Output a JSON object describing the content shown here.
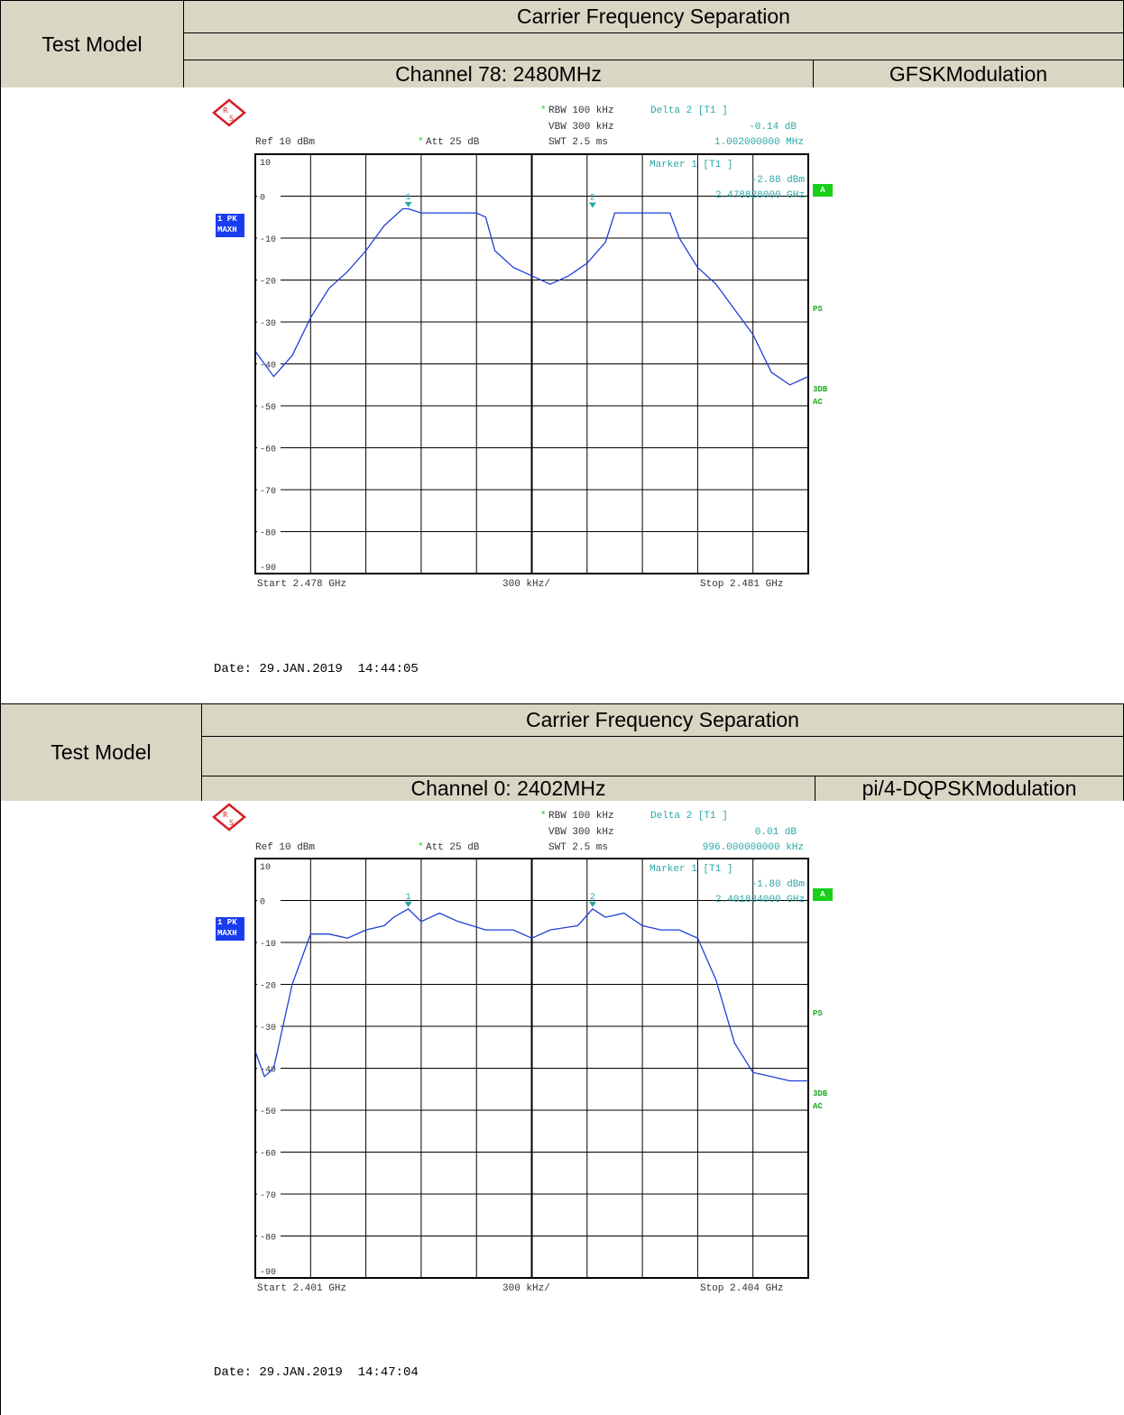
{
  "sections": [
    {
      "title": "Carrier Frequency Separation",
      "test_model_label": "Test Model",
      "channel": "Channel 78: 2480MHz",
      "modulation": "GFSKModulation",
      "date": "Date: 29.JAN.2019  14:44:05",
      "instrument": {
        "rbw": "RBW 100 kHz",
        "vbw": "VBW 300 kHz",
        "swt": "SWT 2.5 ms",
        "ref": "Ref  10 dBm",
        "att": "Att  25 dB",
        "delta_label": "Delta 2 [T1 ]",
        "delta_value": "-0.14 dB",
        "delta_freq": "1.002000000 MHz",
        "marker_label": "Marker 1 [T1 ]",
        "marker_value": "-2.88 dBm",
        "marker_freq": "2.478828000 GHz",
        "trace_badge_line1": "1 PK",
        "trace_badge_line2": "MAXH",
        "side_a": "A",
        "side_ps": "PS",
        "side_3db": "3DB",
        "side_ac": "AC",
        "start": "Start 2.478 GHz",
        "span": "300 kHz/",
        "stop": "Stop 2.481 GHz",
        "marker1_tag": "1",
        "marker2_tag": "2"
      }
    },
    {
      "title": "Carrier Frequency Separation",
      "test_model_label": "Test Model",
      "channel": "Channel 0: 2402MHz",
      "modulation": "pi/4-DQPSKModulation",
      "date": "Date: 29.JAN.2019  14:47:04",
      "instrument": {
        "rbw": "RBW 100 kHz",
        "vbw": "VBW 300 kHz",
        "swt": "SWT 2.5 ms",
        "ref": "Ref  10 dBm",
        "att": "Att  25 dB",
        "delta_label": "Delta 2 [T1 ]",
        "delta_value": "0.01 dB",
        "delta_freq": "996.000000000 kHz",
        "marker_label": "Marker 1 [T1 ]",
        "marker_value": "-1.80 dBm",
        "marker_freq": "2.401834000 GHz",
        "trace_badge_line1": "1 PK",
        "trace_badge_line2": "MAXH",
        "side_a": "A",
        "side_ps": "PS",
        "side_3db": "3DB",
        "side_ac": "AC",
        "start": "Start 2.401 GHz",
        "span": "300 kHz/",
        "stop": "Stop 2.404 GHz",
        "marker1_tag": "1",
        "marker2_tag": "2"
      }
    }
  ],
  "colors": {
    "header_bg": "#d9d6c4",
    "trace": "#1f3fd6",
    "instrument_text": "#2aa7a7",
    "badge_blue": "#1a3cf0",
    "badge_green": "#18d018",
    "side_green": "#1fa81f",
    "logo_red": "#d61f26"
  },
  "chart_data": [
    {
      "type": "line",
      "x_unit": "GHz",
      "y_unit": "dBm",
      "xlim": [
        2.478,
        2.481
      ],
      "ylim": [
        -90,
        10
      ],
      "yticks": [
        10,
        0,
        -10,
        -20,
        -30,
        -40,
        -50,
        -60,
        -70,
        -80,
        -90
      ],
      "grid": true,
      "series": [
        {
          "x": [
            2.478,
            2.4781,
            2.4782,
            2.4783,
            2.4784,
            2.4785,
            2.4786,
            2.4787,
            2.4788,
            2.47883,
            2.4789,
            2.479,
            2.4791,
            2.4792,
            2.47925,
            2.4793,
            2.4794,
            2.4795,
            2.4796,
            2.4797,
            2.4798,
            2.4799,
            2.47995,
            2.48,
            2.4801,
            2.4802,
            2.48025,
            2.4803,
            2.4804,
            2.4805,
            2.4806,
            2.4807,
            2.4808,
            2.4809,
            2.481
          ],
          "y": [
            -37,
            -43,
            -38,
            -29,
            -22,
            -18,
            -13,
            -7,
            -3,
            -3,
            -4,
            -4,
            -4,
            -4,
            -5,
            -13,
            -17,
            -19,
            -21,
            -19,
            -16,
            -11,
            -4,
            -4,
            -4,
            -4,
            -4,
            -10,
            -17,
            -21,
            -27,
            -33,
            -42,
            -45,
            -43
          ]
        }
      ],
      "markers": [
        {
          "label": "1",
          "x": 2.47883,
          "y": -2.88
        },
        {
          "label": "2",
          "x": 2.47983,
          "y": -3.02
        }
      ]
    },
    {
      "type": "line",
      "x_unit": "GHz",
      "y_unit": "dBm",
      "xlim": [
        2.401,
        2.404
      ],
      "ylim": [
        -90,
        10
      ],
      "yticks": [
        10,
        0,
        -10,
        -20,
        -30,
        -40,
        -50,
        -60,
        -70,
        -80,
        -90
      ],
      "grid": true,
      "series": [
        {
          "x": [
            2.401,
            2.40105,
            2.4011,
            2.4012,
            2.4013,
            2.4014,
            2.4015,
            2.4016,
            2.4017,
            2.40175,
            2.40183,
            2.4019,
            2.402,
            2.4021,
            2.40225,
            2.4023,
            2.4024,
            2.4025,
            2.4026,
            2.40275,
            2.40283,
            2.4029,
            2.403,
            2.4031,
            2.4032,
            2.4033,
            2.4034,
            2.4035,
            2.4036,
            2.4037,
            2.4038,
            2.4039,
            2.404
          ],
          "y": [
            -36,
            -42,
            -40,
            -20,
            -8,
            -8,
            -9,
            -7,
            -6,
            -4,
            -2,
            -5,
            -3,
            -5,
            -7,
            -7,
            -7,
            -9,
            -7,
            -6,
            -2,
            -4,
            -3,
            -6,
            -7,
            -7,
            -9,
            -19,
            -34,
            -41,
            -42,
            -43,
            -43
          ]
        }
      ],
      "markers": [
        {
          "label": "1",
          "x": 2.40183,
          "y": -1.8
        },
        {
          "label": "2",
          "x": 2.40283,
          "y": -1.79
        }
      ]
    }
  ]
}
